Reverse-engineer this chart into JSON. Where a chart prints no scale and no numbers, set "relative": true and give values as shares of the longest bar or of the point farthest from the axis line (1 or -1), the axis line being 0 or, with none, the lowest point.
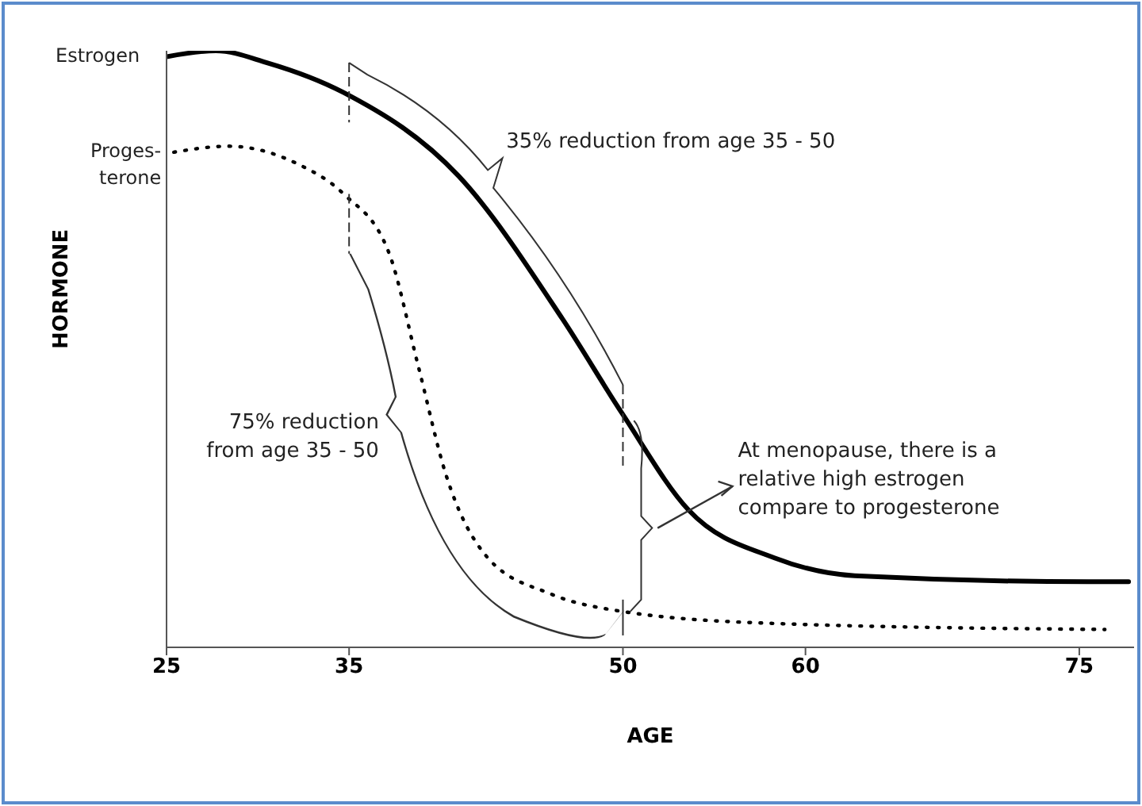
{
  "chart_data": {
    "type": "line",
    "relative": true,
    "xlabel": "AGE",
    "ylabel": "HORMONE",
    "xlim": [
      25,
      78
    ],
    "xticks": [
      25,
      35,
      50,
      60,
      75
    ],
    "legend": false,
    "grid": false,
    "series": [
      {
        "name": "Estrogen",
        "color": "#000000",
        "line_style": "solid",
        "x": [
          25,
          27.7,
          30.5,
          34.7,
          41,
          46.7,
          50,
          53.6,
          58.3,
          62.7,
          75.5,
          77.7
        ],
        "values": [
          0.99,
          1.0,
          0.98,
          0.93,
          0.79,
          0.55,
          0.39,
          0.23,
          0.15,
          0.12,
          0.11,
          0.11
        ]
      },
      {
        "name": "Proges-terone",
        "color": "#000000",
        "line_style": "dotted",
        "x": [
          25.4,
          28.4,
          32.2,
          34.7,
          37.2,
          38.8,
          40.3,
          42.6,
          46,
          50,
          58.3,
          76.4
        ],
        "values": [
          0.83,
          0.84,
          0.81,
          0.76,
          0.66,
          0.47,
          0.29,
          0.15,
          0.09,
          0.06,
          0.04,
          0.03
        ]
      }
    ],
    "annotations": [
      "35% reduction from age 35 - 50",
      "75% reduction from age 35 - 50",
      "At menopause, there is a relative high estrogen compare to progesterone"
    ]
  }
}
